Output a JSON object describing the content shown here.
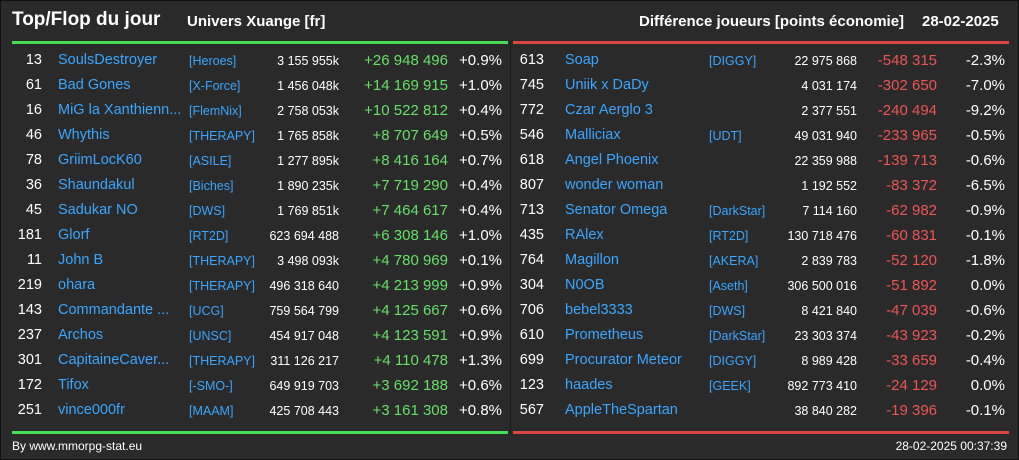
{
  "header": {
    "title": "Top/Flop du jour",
    "universe": "Univers Xuange [fr]",
    "mode": "Différence joueurs [points économie]",
    "date": "28-02-2025"
  },
  "top": [
    {
      "rank": "13",
      "name": "SoulsDestroyer",
      "alliance": "[Heroes]",
      "points": "3 155 955k",
      "diff": "+26 948 496",
      "pct": "+0.9%"
    },
    {
      "rank": "61",
      "name": "Bad Gones",
      "alliance": "[X-Force]",
      "points": "1 456 048k",
      "diff": "+14 169 915",
      "pct": "+1.0%"
    },
    {
      "rank": "16",
      "name": "MiG la Xanthienn...",
      "alliance": "[FlemNix]",
      "points": "2 758 053k",
      "diff": "+10 522 812",
      "pct": "+0.4%"
    },
    {
      "rank": "46",
      "name": "Whythis",
      "alliance": "[THERAPY]",
      "points": "1 765 858k",
      "diff": "+8 707 649",
      "pct": "+0.5%"
    },
    {
      "rank": "78",
      "name": "GriimLocK60",
      "alliance": "[ASILE]",
      "points": "1 277 895k",
      "diff": "+8 416 164",
      "pct": "+0.7%"
    },
    {
      "rank": "36",
      "name": "Shaundakul",
      "alliance": "[Biches]",
      "points": "1 890 235k",
      "diff": "+7 719 290",
      "pct": "+0.4%"
    },
    {
      "rank": "45",
      "name": "Sadukar NO",
      "alliance": "[DWS]",
      "points": "1 769 851k",
      "diff": "+7 464 617",
      "pct": "+0.4%"
    },
    {
      "rank": "181",
      "name": "Glorf",
      "alliance": "[RT2D]",
      "points": "623 694 488",
      "diff": "+6 308 146",
      "pct": "+1.0%"
    },
    {
      "rank": "11",
      "name": "John B",
      "alliance": "[THERAPY]",
      "points": "3 498 093k",
      "diff": "+4 780 969",
      "pct": "+0.1%"
    },
    {
      "rank": "219",
      "name": "ohara",
      "alliance": "[THERAPY]",
      "points": "496 318 640",
      "diff": "+4 213 999",
      "pct": "+0.9%"
    },
    {
      "rank": "143",
      "name": "Commandante ...",
      "alliance": "[UCG]",
      "points": "759 564 799",
      "diff": "+4 125 667",
      "pct": "+0.6%"
    },
    {
      "rank": "237",
      "name": "Archos",
      "alliance": "[UNSC]",
      "points": "454 917 048",
      "diff": "+4 123 591",
      "pct": "+0.9%"
    },
    {
      "rank": "301",
      "name": "CapitaineCaver...",
      "alliance": "[THERAPY]",
      "points": "311 126 217",
      "diff": "+4 110 478",
      "pct": "+1.3%"
    },
    {
      "rank": "172",
      "name": "Tifox",
      "alliance": "[-SMO-]",
      "points": "649 919 703",
      "diff": "+3 692 188",
      "pct": "+0.6%"
    },
    {
      "rank": "251",
      "name": "vince000fr",
      "alliance": "[MAAM]",
      "points": "425 708 443",
      "diff": "+3 161 308",
      "pct": "+0.8%"
    }
  ],
  "flop": [
    {
      "rank": "613",
      "name": "Soap",
      "alliance": "[DIGGY]",
      "points": "22 975 868",
      "diff": "-548 315",
      "pct": "-2.3%"
    },
    {
      "rank": "745",
      "name": "Uniik x DaDy",
      "alliance": "",
      "points": "4 031 174",
      "diff": "-302 650",
      "pct": "-7.0%"
    },
    {
      "rank": "772",
      "name": "Czar Aerglo 3",
      "alliance": "",
      "points": "2 377 551",
      "diff": "-240 494",
      "pct": "-9.2%"
    },
    {
      "rank": "546",
      "name": "Malliciax",
      "alliance": "[UDT]",
      "points": "49 031 940",
      "diff": "-233 965",
      "pct": "-0.5%"
    },
    {
      "rank": "618",
      "name": "Angel Phoenix",
      "alliance": "",
      "points": "22 359 988",
      "diff": "-139 713",
      "pct": "-0.6%"
    },
    {
      "rank": "807",
      "name": "wonder woman",
      "alliance": "",
      "points": "1 192 552",
      "diff": "-83 372",
      "pct": "-6.5%"
    },
    {
      "rank": "713",
      "name": "Senator Omega",
      "alliance": "[DarkStar]",
      "points": "7 114 160",
      "diff": "-62 982",
      "pct": "-0.9%"
    },
    {
      "rank": "435",
      "name": "RAlex",
      "alliance": "[RT2D]",
      "points": "130 718 476",
      "diff": "-60 831",
      "pct": "-0.1%"
    },
    {
      "rank": "764",
      "name": "Magillon",
      "alliance": "[AKERA]",
      "points": "2 839 783",
      "diff": "-52 120",
      "pct": "-1.8%"
    },
    {
      "rank": "304",
      "name": "N0OB",
      "alliance": "[Aseth]",
      "points": "306 500 016",
      "diff": "-51 892",
      "pct": "0.0%"
    },
    {
      "rank": "706",
      "name": "bebel3333",
      "alliance": "[DWS]",
      "points": "8 421 840",
      "diff": "-47 039",
      "pct": "-0.6%"
    },
    {
      "rank": "610",
      "name": "Prometheus",
      "alliance": "[DarkStar]",
      "points": "23 303 374",
      "diff": "-43 923",
      "pct": "-0.2%"
    },
    {
      "rank": "699",
      "name": "Procurator Meteor",
      "alliance": "[DIGGY]",
      "points": "8 989 428",
      "diff": "-33 659",
      "pct": "-0.4%"
    },
    {
      "rank": "123",
      "name": "haades",
      "alliance": "[GEEK]",
      "points": "892 773 410",
      "diff": "-24 129",
      "pct": "0.0%"
    },
    {
      "rank": "567",
      "name": "AppleTheSpartan",
      "alliance": "",
      "points": "38 840 282",
      "diff": "-19 396",
      "pct": "-0.1%"
    }
  ],
  "footer": {
    "source": "By www.mmorpg-stat.eu",
    "timestamp": "28-02-2025 00:37:39"
  },
  "colors": {
    "background": "#2a2a2a",
    "top_accent": "#44dd55",
    "flop_accent": "#dd4444",
    "player_link": "#3aa6ff",
    "gain_text": "#66e066",
    "loss_text": "#ee5555"
  }
}
